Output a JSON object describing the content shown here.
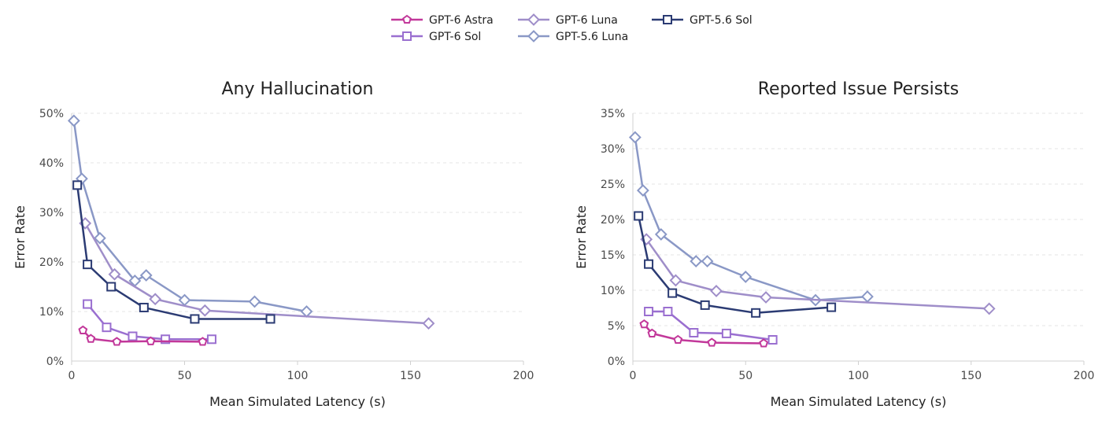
{
  "legend": {
    "items": [
      {
        "key": "gpt6-astra",
        "label": "GPT-6 Astra",
        "marker": "pentagon",
        "color": "#c2389a"
      },
      {
        "key": "gpt6-luna",
        "label": "GPT-6 Luna",
        "marker": "diamond",
        "color": "#9f8ec9"
      },
      {
        "key": "gpt56-sol",
        "label": "GPT-5.6 Sol",
        "marker": "square",
        "color": "#2b3b73"
      },
      {
        "key": "gpt6-sol",
        "label": "GPT-6 Sol",
        "marker": "square",
        "color": "#9a6fd0"
      },
      {
        "key": "gpt56-luna",
        "label": "GPT-5.6 Luna",
        "marker": "diamond",
        "color": "#8a98c6"
      }
    ]
  },
  "chart_data": [
    {
      "type": "line",
      "title": "Any Hallucination",
      "xlabel": "Mean Simulated Latency (s)",
      "ylabel": "Error Rate",
      "xlim": [
        0,
        200
      ],
      "ylim": [
        0,
        50
      ],
      "xticks": [
        0,
        50,
        100,
        150,
        200
      ],
      "yticks": [
        0,
        10,
        20,
        30,
        40,
        50
      ],
      "ytick_labels": [
        "0%",
        "10%",
        "20%",
        "30%",
        "40%",
        "50%"
      ],
      "xtick_labels": [
        "0",
        "50",
        "100",
        "150",
        "200"
      ],
      "grid": true,
      "series": [
        {
          "name": "GPT-5.6 Luna",
          "marker": "diamond",
          "color": "#8a98c6",
          "x": [
            1,
            4.5,
            12.5,
            28,
            33,
            50,
            81,
            104
          ],
          "y": [
            48.5,
            36.8,
            24.8,
            16.2,
            17.3,
            12.3,
            12.0,
            10.0
          ]
        },
        {
          "name": "GPT-6 Luna",
          "marker": "diamond",
          "color": "#9f8ec9",
          "x": [
            6,
            19,
            37,
            59,
            158
          ],
          "y": [
            27.8,
            17.5,
            12.5,
            10.2,
            7.6
          ]
        },
        {
          "name": "GPT-5.6 Sol",
          "marker": "square",
          "color": "#2b3b73",
          "x": [
            2.5,
            7,
            17.5,
            32,
            54.5,
            88
          ],
          "y": [
            35.5,
            19.5,
            15.0,
            10.8,
            8.5,
            8.5
          ]
        },
        {
          "name": "GPT-6 Sol",
          "marker": "square",
          "color": "#9a6fd0",
          "x": [
            7,
            15.5,
            27,
            41.5,
            62
          ],
          "y": [
            11.5,
            6.8,
            5.0,
            4.4,
            4.4
          ]
        },
        {
          "name": "GPT-6 Astra",
          "marker": "pentagon",
          "color": "#c2389a",
          "x": [
            5,
            8.5,
            20,
            35,
            58
          ],
          "y": [
            6.2,
            4.5,
            3.9,
            4.0,
            3.9
          ]
        }
      ]
    },
    {
      "type": "line",
      "title": "Reported Issue Persists",
      "xlabel": "Mean Simulated Latency (s)",
      "ylabel": "Error Rate",
      "xlim": [
        0,
        200
      ],
      "ylim": [
        0,
        35
      ],
      "xticks": [
        0,
        50,
        100,
        150,
        200
      ],
      "yticks": [
        0,
        5,
        10,
        15,
        20,
        25,
        30,
        35
      ],
      "ytick_labels": [
        "0%",
        "5%",
        "10%",
        "15%",
        "20%",
        "25%",
        "30%",
        "35%"
      ],
      "xtick_labels": [
        "0",
        "50",
        "100",
        "150",
        "200"
      ],
      "grid": true,
      "series": [
        {
          "name": "GPT-5.6 Luna",
          "marker": "diamond",
          "color": "#8a98c6",
          "x": [
            1,
            4.5,
            12.5,
            28,
            33,
            50,
            81,
            104
          ],
          "y": [
            31.6,
            24.1,
            17.9,
            14.1,
            14.1,
            11.9,
            8.6,
            9.1
          ]
        },
        {
          "name": "GPT-6 Luna",
          "marker": "diamond",
          "color": "#9f8ec9",
          "x": [
            6,
            19,
            37,
            59,
            158
          ],
          "y": [
            17.2,
            11.4,
            9.9,
            9.0,
            7.4
          ]
        },
        {
          "name": "GPT-5.6 Sol",
          "marker": "square",
          "color": "#2b3b73",
          "x": [
            2.5,
            7,
            17.5,
            32,
            54.5,
            88
          ],
          "y": [
            20.5,
            13.7,
            9.6,
            7.9,
            6.8,
            7.6
          ]
        },
        {
          "name": "GPT-6 Sol",
          "marker": "square",
          "color": "#9a6fd0",
          "x": [
            7,
            15.5,
            27,
            41.5,
            62
          ],
          "y": [
            7.0,
            7.0,
            4.0,
            3.9,
            3.0
          ]
        },
        {
          "name": "GPT-6 Astra",
          "marker": "pentagon",
          "color": "#c2389a",
          "x": [
            5,
            8.5,
            20,
            35,
            58
          ],
          "y": [
            5.2,
            3.9,
            3.0,
            2.6,
            2.5
          ]
        }
      ]
    }
  ]
}
